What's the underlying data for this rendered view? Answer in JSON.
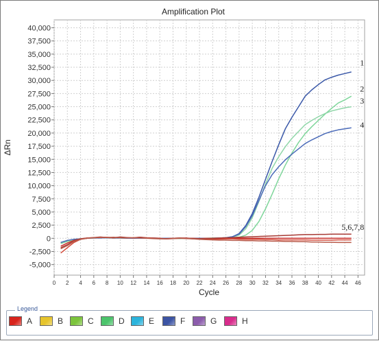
{
  "chart_data": {
    "type": "line",
    "title": "Amplification Plot",
    "xlabel": "Cycle",
    "ylabel": "ΔRn",
    "xlim": [
      0,
      47
    ],
    "ylim": [
      -7000,
      41500
    ],
    "x_ticks": [
      "0",
      "2",
      "4",
      "6",
      "8",
      "10",
      "12",
      "14",
      "16",
      "18",
      "20",
      "22",
      "24",
      "26",
      "28",
      "30",
      "32",
      "34",
      "36",
      "38",
      "40",
      "42",
      "44",
      "46"
    ],
    "y_ticks": [
      "-5,000",
      "-2,500",
      "0",
      "2,500",
      "5,000",
      "7,500",
      "10,000",
      "12,500",
      "15,000",
      "17,500",
      "20,000",
      "22,500",
      "25,000",
      "27,500",
      "30,000",
      "32,500",
      "35,000",
      "37,500",
      "40,000"
    ],
    "grid": true,
    "annotations": [
      {
        "text": "1",
        "x": 46.3,
        "y": 32800
      },
      {
        "text": "2",
        "x": 46.3,
        "y": 27900
      },
      {
        "text": "3",
        "x": 46.3,
        "y": 25600
      },
      {
        "text": "4",
        "x": 46.3,
        "y": 21000
      },
      {
        "text": "5,6,7,8",
        "x": 43.5,
        "y": 1600
      }
    ],
    "series": [
      {
        "color": "#3a58a8",
        "x": [
          1,
          2,
          3,
          4,
          5,
          6,
          7,
          8,
          9,
          10,
          11,
          12,
          13,
          14,
          15,
          16,
          17,
          18,
          19,
          20,
          21,
          22,
          23,
          24,
          25,
          26,
          27,
          28,
          29,
          30,
          31,
          32,
          33,
          34,
          35,
          36,
          37,
          38,
          39,
          40,
          41,
          42,
          43,
          44,
          45
        ],
        "y": [
          -900,
          -500,
          -300,
          -100,
          0,
          50,
          100,
          100,
          50,
          100,
          50,
          0,
          50,
          0,
          50,
          0,
          0,
          0,
          0,
          0,
          -50,
          0,
          0,
          0,
          50,
          100,
          300,
          900,
          2400,
          4700,
          7800,
          11200,
          14600,
          17800,
          20800,
          23000,
          25000,
          27000,
          28200,
          29200,
          30100,
          30600,
          31000,
          31300,
          31600
        ]
      },
      {
        "color": "#7ed69a",
        "x": [
          1,
          2,
          3,
          4,
          5,
          6,
          7,
          8,
          9,
          10,
          11,
          12,
          13,
          14,
          15,
          16,
          17,
          18,
          19,
          20,
          21,
          22,
          23,
          24,
          25,
          26,
          27,
          28,
          29,
          30,
          31,
          32,
          33,
          34,
          35,
          36,
          37,
          38,
          39,
          40,
          41,
          42,
          43,
          44,
          45
        ],
        "y": [
          -1000,
          -600,
          -300,
          -100,
          0,
          50,
          50,
          100,
          50,
          50,
          0,
          50,
          0,
          0,
          0,
          0,
          0,
          0,
          -50,
          0,
          0,
          0,
          0,
          0,
          50,
          50,
          100,
          200,
          600,
          1500,
          3200,
          5600,
          8400,
          11300,
          13900,
          16200,
          18200,
          19900,
          21200,
          22400,
          23600,
          24700,
          25700,
          26300,
          27000
        ]
      },
      {
        "color": "#8fd6a8",
        "x": [
          1,
          2,
          3,
          4,
          5,
          6,
          7,
          8,
          9,
          10,
          11,
          12,
          13,
          14,
          15,
          16,
          17,
          18,
          19,
          20,
          21,
          22,
          23,
          24,
          25,
          26,
          27,
          28,
          29,
          30,
          31,
          32,
          33,
          34,
          35,
          36,
          37,
          38,
          39,
          40,
          41,
          42,
          43,
          44,
          45
        ],
        "y": [
          -900,
          -500,
          -200,
          -100,
          0,
          50,
          100,
          50,
          50,
          50,
          0,
          0,
          0,
          0,
          0,
          0,
          0,
          0,
          0,
          0,
          0,
          0,
          0,
          50,
          50,
          100,
          200,
          600,
          1800,
          3900,
          7000,
          10300,
          13300,
          15500,
          17400,
          19000,
          20300,
          21600,
          22400,
          23100,
          23700,
          24200,
          24500,
          24800,
          25000
        ]
      },
      {
        "color": "#4a6ab8",
        "x": [
          1,
          2,
          3,
          4,
          5,
          6,
          7,
          8,
          9,
          10,
          11,
          12,
          13,
          14,
          15,
          16,
          17,
          18,
          19,
          20,
          21,
          22,
          23,
          24,
          25,
          26,
          27,
          28,
          29,
          30,
          31,
          32,
          33,
          34,
          35,
          36,
          37,
          38,
          39,
          40,
          41,
          42,
          43,
          44,
          45
        ],
        "y": [
          -800,
          -400,
          -200,
          -100,
          0,
          50,
          50,
          100,
          50,
          50,
          0,
          0,
          0,
          0,
          0,
          0,
          0,
          0,
          0,
          0,
          0,
          0,
          0,
          0,
          50,
          100,
          300,
          800,
          2200,
          4300,
          7200,
          10000,
          12100,
          13600,
          14900,
          16000,
          17000,
          18000,
          18700,
          19300,
          19900,
          20300,
          20600,
          20800,
          21000
        ]
      },
      {
        "color": "#c8302c",
        "x": [
          1,
          2,
          3,
          4,
          5,
          6,
          7,
          8,
          9,
          10,
          11,
          12,
          13,
          14,
          15,
          16,
          17,
          18,
          19,
          20,
          21,
          22,
          23,
          24,
          25,
          26,
          27,
          28,
          29,
          30,
          31,
          32,
          33,
          34,
          35,
          36,
          37,
          38,
          39,
          40,
          41,
          42,
          43,
          44,
          45
        ],
        "y": [
          -1500,
          -900,
          -400,
          -100,
          50,
          100,
          200,
          150,
          100,
          200,
          100,
          50,
          100,
          50,
          0,
          -50,
          -100,
          -50,
          0,
          50,
          -50,
          -100,
          -50,
          -50,
          0,
          0,
          0,
          0,
          0,
          0,
          0,
          0,
          0,
          0,
          0,
          0,
          0,
          0,
          0,
          0,
          0,
          0,
          0,
          0,
          0
        ]
      },
      {
        "color": "#d24a3a",
        "x": [
          1,
          2,
          3,
          4,
          5,
          6,
          7,
          8,
          9,
          10,
          11,
          12,
          13,
          14,
          15,
          16,
          17,
          18,
          19,
          20,
          21,
          22,
          23,
          24,
          25,
          26,
          27,
          28,
          29,
          30,
          31,
          32,
          33,
          34,
          35,
          36,
          37,
          38,
          39,
          40,
          41,
          42,
          43,
          44,
          45
        ],
        "y": [
          -2800,
          -1800,
          -800,
          -200,
          0,
          100,
          150,
          200,
          100,
          150,
          100,
          100,
          200,
          100,
          50,
          0,
          -100,
          0,
          50,
          0,
          -100,
          -150,
          -200,
          -200,
          -150,
          -100,
          -100,
          -150,
          -200,
          -200,
          -200,
          -250,
          -250,
          -300,
          -300,
          -300,
          -300,
          -300,
          -350,
          -350,
          -350,
          -350,
          -300,
          -300,
          -300
        ]
      },
      {
        "color": "#a83a34",
        "x": [
          1,
          2,
          3,
          4,
          5,
          6,
          7,
          8,
          9,
          10,
          11,
          12,
          13,
          14,
          15,
          16,
          17,
          18,
          19,
          20,
          21,
          22,
          23,
          24,
          25,
          26,
          27,
          28,
          29,
          30,
          31,
          32,
          33,
          34,
          35,
          36,
          37,
          38,
          39,
          40,
          41,
          42,
          43,
          44,
          45
        ],
        "y": [
          -1800,
          -1200,
          -500,
          -100,
          50,
          150,
          250,
          150,
          100,
          250,
          150,
          50,
          200,
          50,
          0,
          -50,
          -50,
          0,
          50,
          0,
          0,
          -50,
          0,
          0,
          50,
          100,
          150,
          200,
          250,
          300,
          350,
          400,
          450,
          500,
          550,
          600,
          650,
          700,
          700,
          750,
          750,
          800,
          800,
          800,
          800
        ]
      },
      {
        "color": "#b85a4a",
        "x": [
          1,
          2,
          3,
          4,
          5,
          6,
          7,
          8,
          9,
          10,
          11,
          12,
          13,
          14,
          15,
          16,
          17,
          18,
          19,
          20,
          21,
          22,
          23,
          24,
          25,
          26,
          27,
          28,
          29,
          30,
          31,
          32,
          33,
          34,
          35,
          36,
          37,
          38,
          39,
          40,
          41,
          42,
          43,
          44,
          45
        ],
        "y": [
          -2000,
          -1400,
          -600,
          -200,
          0,
          100,
          200,
          150,
          200,
          100,
          50,
          100,
          50,
          0,
          -50,
          -100,
          -100,
          -50,
          0,
          -50,
          -100,
          -200,
          -250,
          -300,
          -350,
          -350,
          -400,
          -400,
          -450,
          -450,
          -500,
          -500,
          -550,
          -550,
          -600,
          -600,
          -650,
          -650,
          -700,
          -700,
          -750,
          -750,
          -800,
          -800,
          -800
        ]
      }
    ]
  },
  "legend": {
    "title": "Legend",
    "items": [
      {
        "label": "A",
        "color": "#d8241c"
      },
      {
        "label": "B",
        "color": "#e6c42c"
      },
      {
        "label": "C",
        "color": "#7cc43c"
      },
      {
        "label": "D",
        "color": "#4cc46c"
      },
      {
        "label": "E",
        "color": "#2cb4dc"
      },
      {
        "label": "F",
        "color": "#3c54a4"
      },
      {
        "label": "G",
        "color": "#8c5cac"
      },
      {
        "label": "H",
        "color": "#d82c8c"
      }
    ]
  }
}
